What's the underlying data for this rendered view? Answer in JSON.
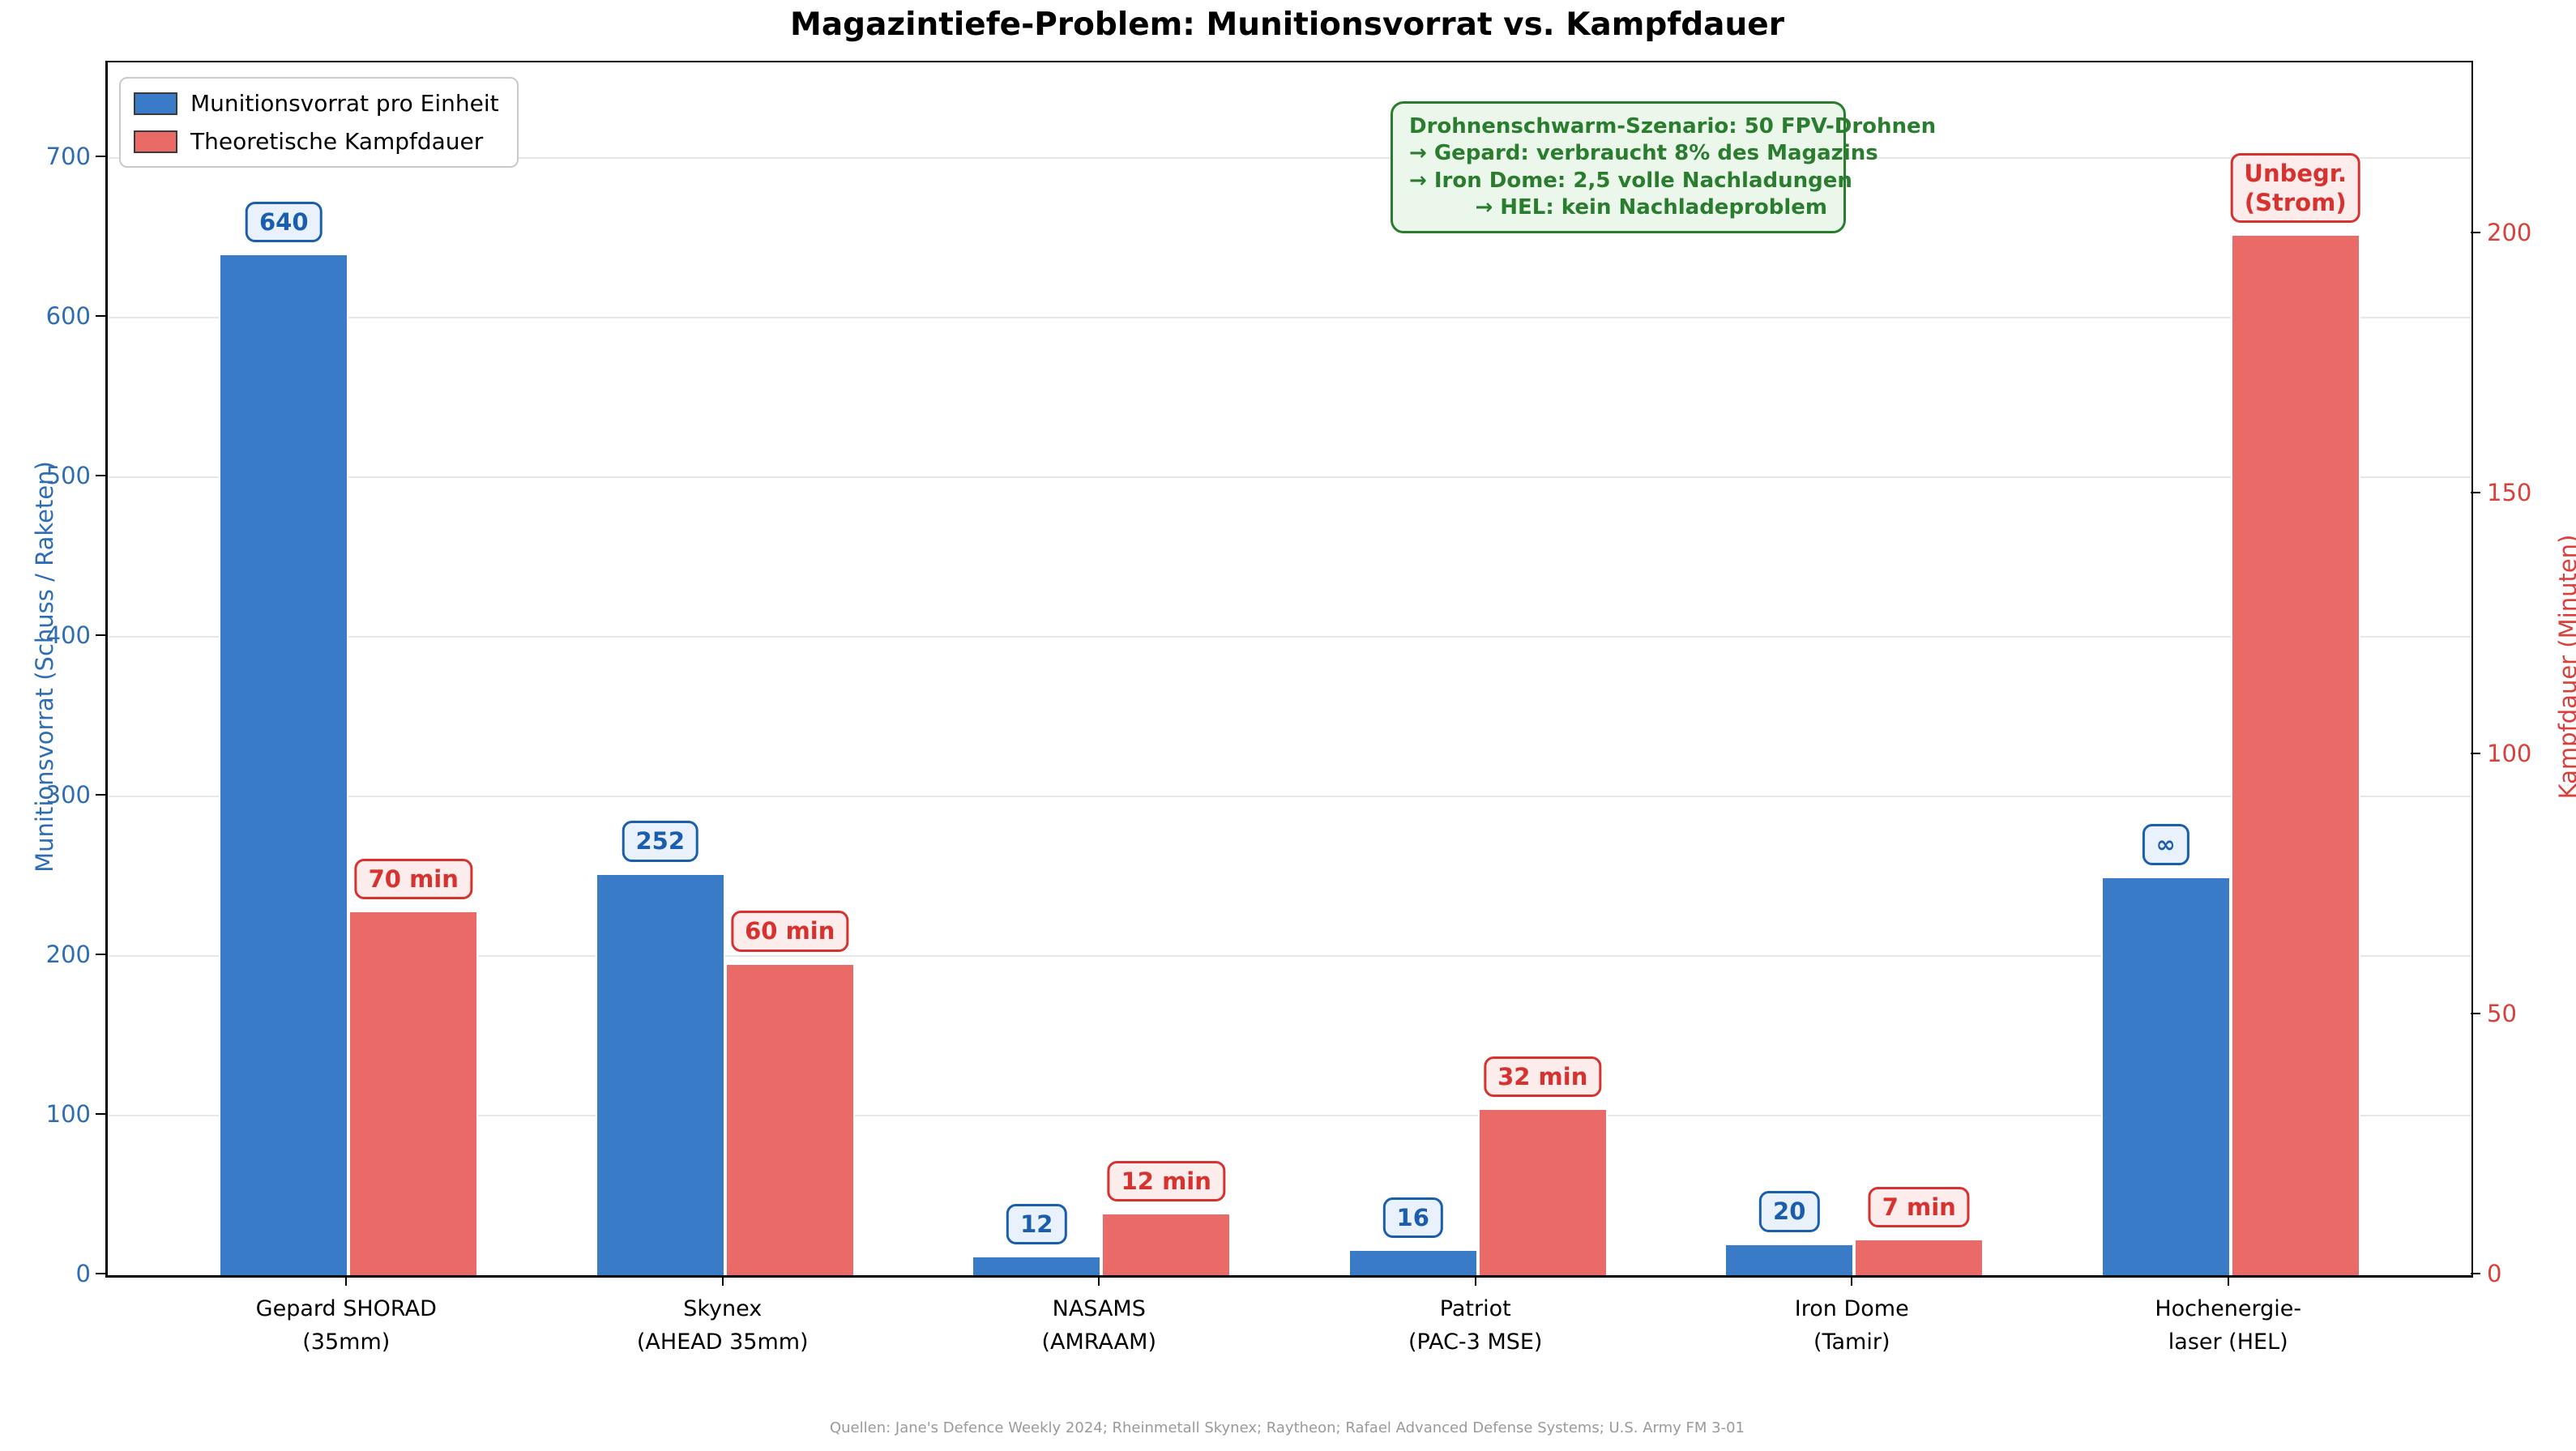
{
  "title": "Magazintiefe-Problem: Munitionsvorrat vs. Kampfdauer",
  "legend": [
    {
      "label": "Munitionsvorrat pro Einheit",
      "color": "#3a7bc8"
    },
    {
      "label": "Theoretische Kampfdauer",
      "color": "#ea6a67"
    }
  ],
  "annotation": {
    "lines": [
      "Drohnenschwarm-Szenario: 50 FPV-Drohnen",
      "→ Gepard: verbraucht 8% des Magazins",
      "→ Iron Dome: 2,5 volle Nachladungen",
      "→ HEL: kein Nachladeproblem"
    ],
    "text_color": "#2a7d2e",
    "background": "#eaf7ea"
  },
  "axes": {
    "left": {
      "label": "Munitionsvorrat (Schuss / Raketen)",
      "ticks": [
        0,
        100,
        200,
        300,
        400,
        500,
        600,
        700
      ],
      "max": 760,
      "color": "#2e6db4"
    },
    "right": {
      "label": "Kampfdauer (Minuten)",
      "ticks": [
        0,
        50,
        100,
        150,
        200
      ],
      "max": 233,
      "color": "#d9403c"
    }
  },
  "footer": "Quellen: Jane's Defence Weekly 2024; Rheinmetall Skynex; Raytheon; Rafael Advanced Defense Systems; U.S. Army FM 3-01",
  "chart_data": {
    "type": "bar",
    "categories": [
      [
        "Gepard SHORAD",
        "(35mm)"
      ],
      [
        "Skynex",
        "(AHEAD 35mm)"
      ],
      [
        "NASAMS",
        "(AMRAAM)"
      ],
      [
        "Patriot",
        "(PAC-3 MSE)"
      ],
      [
        "Iron Dome",
        "(Tamir)"
      ],
      [
        "Hochenergie-",
        "laser (HEL)"
      ]
    ],
    "series": [
      {
        "name": "Munitionsvorrat pro Einheit",
        "axis": "left",
        "color": "#3a7bc8",
        "values": [
          640,
          252,
          12,
          16,
          20,
          250
        ],
        "labels": [
          "640",
          "252",
          "12",
          "16",
          "20",
          "∞"
        ],
        "note": "HEL-Wert unbegrenzt (∞), dargestellt als Balkenhöhe 250"
      },
      {
        "name": "Theoretische Kampfdauer",
        "axis": "right",
        "color": "#ea6a67",
        "values": [
          70,
          60,
          12,
          32,
          7,
          200
        ],
        "labels": [
          "70 min",
          "60 min",
          "12 min",
          "32 min",
          "7 min",
          "Unbegr.\n(Strom)"
        ],
        "note": "HEL-Dauer unbegrenzt (Strom), dargestellt als Balkenhöhe 200"
      }
    ],
    "title": "Magazintiefe-Problem: Munitionsvorrat vs. Kampfdauer",
    "xlabel": "",
    "ylabel_left": "Munitionsvorrat (Schuss / Raketen)",
    "ylabel_right": "Kampfdauer (Minuten)",
    "ylim_left": [
      0,
      760
    ],
    "ylim_right": [
      0,
      233
    ],
    "grid": "horizontal",
    "legend_position": "upper-left"
  }
}
